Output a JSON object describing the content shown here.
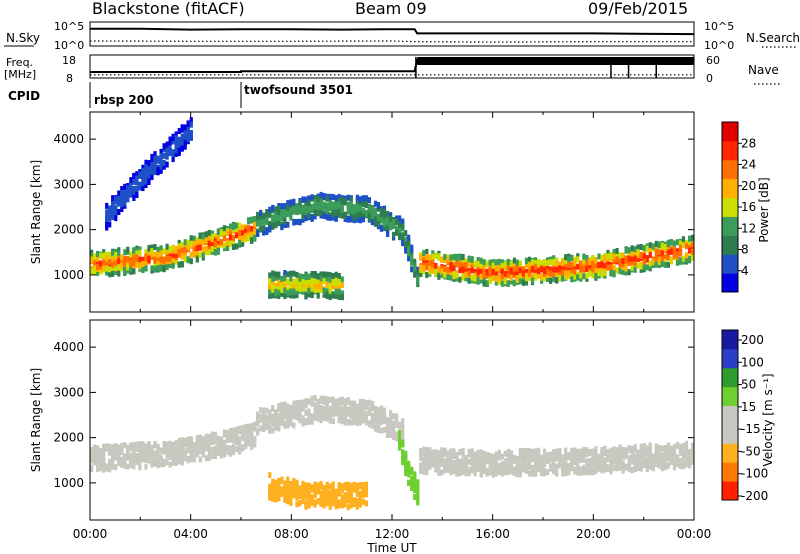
{
  "header": {
    "station": "Blackstone (fitACF)",
    "beam": "Beam 09",
    "date": "09/Feb/2015"
  },
  "chart_data": [
    {
      "type": "line",
      "name": "noise-panel",
      "left_label": "N.Sky",
      "right_label": "N.Search",
      "left_ticks": [
        "10^5",
        "10^0"
      ],
      "right_ticks": [
        "10^5",
        "10^0"
      ],
      "ylim_log10": [
        0,
        5
      ],
      "series": [
        {
          "name": "N.Sky",
          "style": "solid",
          "x": [
            0,
            2,
            4,
            6,
            8,
            10,
            12,
            12.9,
            13,
            16,
            20,
            24
          ],
          "values_log10": [
            4.0,
            4.0,
            3.8,
            3.9,
            3.9,
            3.8,
            3.9,
            3.9,
            2.8,
            2.8,
            2.8,
            2.6
          ]
        },
        {
          "name": "N.Search",
          "style": "dotted",
          "x": [
            0,
            4,
            8,
            12,
            13,
            16,
            20,
            24
          ],
          "values_log10": [
            0.8,
            0.7,
            0.7,
            0.8,
            0.6,
            0.5,
            0.6,
            0.6
          ]
        }
      ]
    },
    {
      "type": "line",
      "name": "frequency-panel",
      "left_label": "Freq. [MHz]",
      "right_label": "Nave",
      "left_ticks": [
        "18",
        "8"
      ],
      "right_ticks": [
        "60",
        "0"
      ],
      "series": [
        {
          "name": "Freq. [MHz]",
          "style": "solid",
          "x": [
            0,
            6,
            6,
            12.9,
            13,
            24
          ],
          "values": [
            10.5,
            10.5,
            11.0,
            11.0,
            18,
            18
          ]
        },
        {
          "name": "Nave",
          "style": "dotted",
          "x": [
            0,
            24
          ],
          "values": [
            4,
            4
          ]
        }
      ]
    },
    {
      "type": "table",
      "name": "cpid-panel",
      "label": "CPID",
      "segments": [
        {
          "start": 0,
          "end": 6,
          "text": "rbsp 200"
        },
        {
          "start": 6,
          "end": 24,
          "text": "twofsound 3501"
        }
      ]
    },
    {
      "type": "heatmap",
      "name": "power-panel",
      "ylabel": "Slant Range [km]",
      "xlabel": "Time UT",
      "xlim": [
        0,
        24
      ],
      "ylim": [
        180,
        4600
      ],
      "yticks": [
        1000,
        2000,
        3000,
        4000
      ],
      "xticks": [
        "00:00",
        "04:00",
        "08:00",
        "12:00",
        "16:00",
        "20:00",
        "00:00"
      ],
      "colorbar": {
        "label": "Power [dB]",
        "ticks": [
          4,
          8,
          12,
          16,
          20,
          24,
          28
        ],
        "range": [
          0,
          32
        ]
      },
      "features": [
        {
          "t": [
            0,
            3,
            5,
            6.5
          ],
          "range_km": [
            1300,
            1450,
            1800,
            2100
          ],
          "value_db": 26
        },
        {
          "t": [
            6.5,
            9,
            11,
            12.4,
            13
          ],
          "range_km": [
            2200,
            2600,
            2500,
            2000,
            900
          ],
          "value_db": 14
        },
        {
          "t": [
            7,
            8.5,
            10
          ],
          "range_km": [
            850,
            850,
            820
          ],
          "value_db": 20
        },
        {
          "t": [
            13,
            16,
            20,
            24
          ],
          "range_km": [
            1350,
            1100,
            1250,
            1650
          ],
          "value_db": 28
        },
        {
          "t": [
            0.5,
            2,
            4
          ],
          "range_km": [
            2300,
            3200,
            4300
          ],
          "value_db": 6
        }
      ]
    },
    {
      "type": "heatmap",
      "name": "velocity-panel",
      "ylabel": "Slant Range [km]",
      "xlabel": "Time UT",
      "xlim": [
        0,
        24
      ],
      "ylim": [
        180,
        4600
      ],
      "yticks": [
        1000,
        2000,
        3000,
        4000
      ],
      "xticks": [
        "00:00",
        "04:00",
        "08:00",
        "12:00",
        "16:00",
        "20:00",
        "00:00"
      ],
      "colorbar": {
        "label": "Velocity [m s⁻¹]",
        "ticks": [
          "200",
          "100",
          "50",
          "15",
          "-15",
          "-50",
          "-100",
          "-200"
        ]
      },
      "features": [
        {
          "t": [
            0,
            3,
            5,
            6.5
          ],
          "range_km": [
            1600,
            1700,
            1900,
            2100
          ],
          "value_ms": 0
        },
        {
          "t": [
            6.5,
            9,
            11,
            12.4
          ],
          "range_km": [
            2400,
            2700,
            2600,
            2200
          ],
          "value_ms": 0
        },
        {
          "t": [
            12.2,
            12.6,
            13
          ],
          "range_km": [
            2000,
            1300,
            800
          ],
          "value_ms": 60
        },
        {
          "t": [
            7,
            8.5,
            11
          ],
          "range_km": [
            1000,
            800,
            780
          ],
          "value_ms": -60
        },
        {
          "t": [
            13,
            16,
            20,
            24
          ],
          "range_km": [
            1550,
            1500,
            1550,
            1700
          ],
          "value_ms": 0
        }
      ]
    }
  ],
  "colors": {
    "power_scale": [
      "#0000e0",
      "#2050c8",
      "#2e7d4f",
      "#3c9c5a",
      "#ccdd00",
      "#ffb000",
      "#ff7000",
      "#ff2800",
      "#e00000"
    ],
    "velocity_scale": [
      "#1a1aa0",
      "#2a3fc8",
      "#2e9c2e",
      "#6fcf30",
      "#c8c8c0",
      "#c8c8c0",
      "#ffb020",
      "#ff7a00",
      "#ff2000"
    ]
  }
}
